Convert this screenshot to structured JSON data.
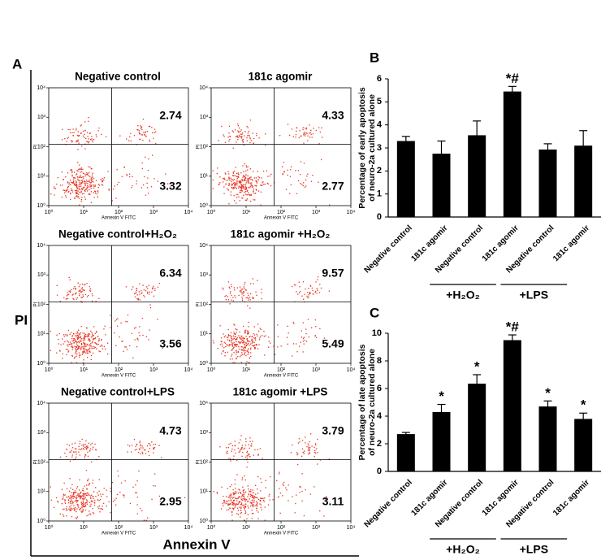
{
  "figure": {
    "panel_labels": [
      "A",
      "B",
      "C"
    ],
    "y_label": "PI",
    "x_label": "Annexin V"
  },
  "flow_cytometry": {
    "log_scale": true,
    "xlim": [
      1,
      10000
    ],
    "ylim": [
      1,
      10000
    ],
    "xticks": [
      {
        "value": 1,
        "label": "10⁰"
      },
      {
        "value": 10,
        "label": "10¹"
      },
      {
        "value": 100,
        "label": "10²"
      },
      {
        "value": 1000,
        "label": "10³"
      },
      {
        "value": 10000,
        "label": "10⁴"
      }
    ],
    "yticks": [
      {
        "value": 1,
        "label": "10⁰"
      },
      {
        "value": 10,
        "label": "10¹"
      },
      {
        "value": 100,
        "label": "10²"
      },
      {
        "value": 1000,
        "label": "10³"
      },
      {
        "value": 10000,
        "label": "10⁴"
      }
    ],
    "xlabel": "Annexin V FITC",
    "ylabel": "PI",
    "color": "#e8321e",
    "plots": [
      {
        "title": "Negative control",
        "upper_right": 2.74,
        "lower_right": 3.32
      },
      {
        "title": "181c agomir",
        "upper_right": 4.33,
        "lower_right": 2.77
      },
      {
        "title": "Negative control+H₂O₂",
        "upper_right": 6.34,
        "lower_right": 3.56
      },
      {
        "title": "181c agomir +H₂O₂",
        "upper_right": 9.57,
        "lower_right": 5.49
      },
      {
        "title": "Negative control+LPS",
        "upper_right": 4.73,
        "lower_right": 2.95
      },
      {
        "title": "181c agomir +LPS",
        "upper_right": 3.79,
        "lower_right": 3.11
      }
    ]
  },
  "chart_data": [
    {
      "type": "bar",
      "ylabel": [
        "Percentage of early apoptosis",
        "of neuro-2a cultured alone"
      ],
      "categories": [
        "Negative control",
        "181c agomir",
        "Negative control",
        "181c agomir",
        "Negative control",
        "181c agomir"
      ],
      "values": [
        3.3,
        2.75,
        3.55,
        5.45,
        2.93,
        3.1
      ],
      "errors": [
        0.2,
        0.55,
        0.62,
        0.22,
        0.25,
        0.65
      ],
      "significance": [
        null,
        null,
        null,
        "*#",
        null,
        null
      ],
      "groups": [
        "+H₂O₂",
        "+LPS"
      ],
      "color": "#000000",
      "ylim": [
        0,
        6
      ],
      "yticks": [
        0,
        1,
        2,
        3,
        4,
        5,
        6
      ]
    },
    {
      "type": "bar",
      "ylabel": [
        "Percentage of late apoptosis",
        "of neuro-2a cultured alone"
      ],
      "categories": [
        "Negative control",
        "181c agomir",
        "Negative control",
        "181c agomir",
        "Negative control",
        "181c agomir"
      ],
      "values": [
        2.7,
        4.3,
        6.35,
        9.5,
        4.7,
        3.8
      ],
      "errors": [
        0.12,
        0.55,
        0.65,
        0.38,
        0.4,
        0.42
      ],
      "significance": [
        null,
        "*",
        "*",
        "*#",
        "*",
        "*"
      ],
      "groups": [
        "+H₂O₂",
        "+LPS"
      ],
      "color": "#000000",
      "ylim": [
        0,
        10
      ],
      "yticks": [
        0,
        2,
        4,
        6,
        8,
        10
      ]
    }
  ]
}
